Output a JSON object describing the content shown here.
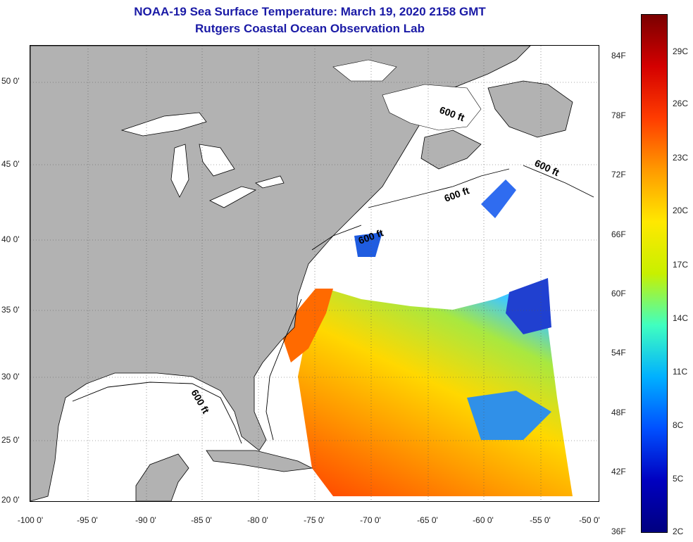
{
  "title": {
    "line1": "NOAA-19 Sea Surface Temperature:  March 19, 2020 2158 GMT",
    "line2": "Rutgers Coastal Ocean Observation Lab"
  },
  "map": {
    "lat_labels": [
      "50 0'",
      "45 0'",
      "40 0'",
      "35 0'",
      "30 0'",
      "25 0'",
      "20 0'"
    ],
    "lon_labels": [
      "-100 0'",
      "-95 0'",
      "-90 0'",
      "-85 0'",
      "-80 0'",
      "-75 0'",
      "-70 0'",
      "-65 0'",
      "-60 0'",
      "-55 0'",
      "-50 0'"
    ],
    "isobath_label": "600 ft",
    "land_color": "#b2b2b2",
    "no_data_color": "#ffffff"
  },
  "colorbar": {
    "f_labels": [
      "84F",
      "78F",
      "72F",
      "66F",
      "60F",
      "54F",
      "48F",
      "42F",
      "36F"
    ],
    "c_labels": [
      "29C",
      "26C",
      "23C",
      "20C",
      "17C",
      "14C",
      "11C",
      "8C",
      "5C",
      "2C"
    ],
    "colors": [
      "#7a0000",
      "#d40000",
      "#ff3c00",
      "#ff9a00",
      "#ffe800",
      "#c8f000",
      "#40ffc0",
      "#00b0ff",
      "#0050ff",
      "#0000c0",
      "#000080"
    ]
  }
}
